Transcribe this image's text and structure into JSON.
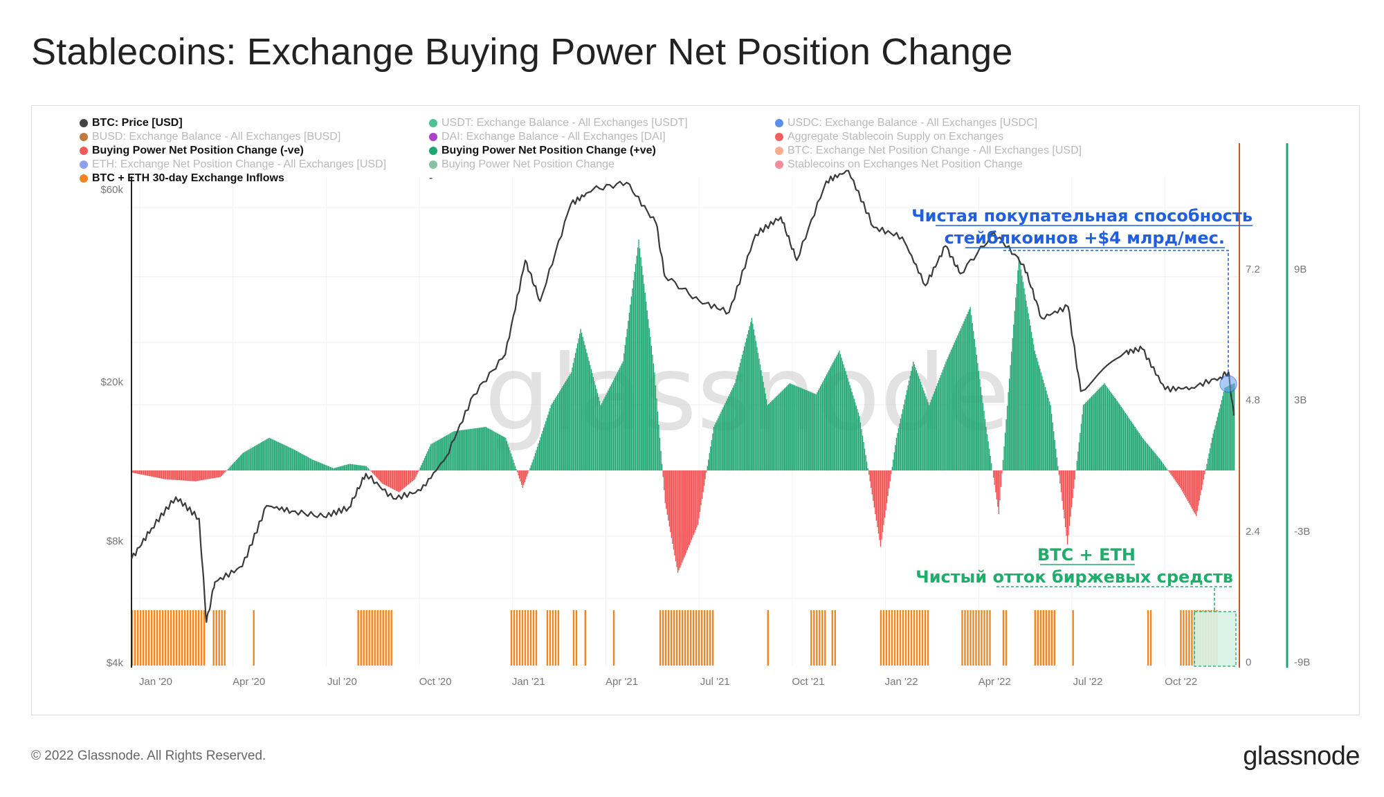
{
  "title": "Stablecoins: Exchange Buying Power Net Position Change",
  "footer": "© 2022 Glassnode. All Rights Reserved.",
  "brand": "glassnode",
  "watermark": "glassnode",
  "legend": [
    {
      "label": "BTC: Price [USD]",
      "color": "#444444",
      "state": "active"
    },
    {
      "label": "USDT: Exchange Balance - All Exchanges [USDT]",
      "color": "#2eb67d",
      "state": "faded"
    },
    {
      "label": "USDC: Exchange Balance - All Exchanges [USDC]",
      "color": "#3b7be8",
      "state": "faded"
    },
    {
      "label": "BUSD: Exchange Balance - All Exchanges [BUSD]",
      "color": "#b5651d",
      "state": "faded"
    },
    {
      "label": "DAI: Exchange Balance - All Exchanges [DAI]",
      "color": "#a020c0",
      "state": "faded"
    },
    {
      "label": "Aggregate Stablecoin Supply on Exchanges",
      "color": "#ee4444",
      "state": "faded"
    },
    {
      "label": "Buying Power Net Position Change (-ve)",
      "color": "#f05a5a",
      "state": "active"
    },
    {
      "label": "Buying Power Net Position Change (+ve)",
      "color": "#1ea672",
      "state": "active"
    },
    {
      "label": "BTC: Exchange Net Position Change - All Exchanges [USD]",
      "color": "#f5a07a",
      "state": "faded"
    },
    {
      "label": "ETH: Exchange Net Position Change - All Exchanges [USD]",
      "color": "#7b8ff0",
      "state": "faded"
    },
    {
      "label": "Buying Power Net Position Change",
      "color": "#70b890",
      "state": "faded"
    },
    {
      "label": "Stablecoins on Exchanges Net Position Change",
      "color": "#f07a8a",
      "state": "faded"
    },
    {
      "label": "BTC + ETH 30-day Exchange Inflows",
      "color": "#f5841f",
      "state": "active"
    },
    {
      "label": "-",
      "color": "",
      "state": "plain"
    }
  ],
  "annotations": {
    "blue_line1": "Чистая покупательная способность",
    "blue_line2": "стейблкоинов +$4 млрд/мес.",
    "green_line1": "BTC + ETH",
    "green_line2": "Чистый отток биржевых средств"
  },
  "colors": {
    "price": "#3a3a3a",
    "positive": "#1ea672",
    "negative": "#f04e4e",
    "inflows": "#f5841f",
    "right_axis": "#1ea672",
    "mid_axis": "#c0562a",
    "annotation_blue": "#1f5fe0",
    "annotation_green": "#1eae6b"
  },
  "chart_data": {
    "type": "bar",
    "x_ticks": [
      "Jan '20",
      "Apr '20",
      "Jul '20",
      "Oct '20",
      "Jan '21",
      "Apr '21",
      "Jul '21",
      "Oct '21",
      "Jan '22",
      "Apr '22",
      "Jul '22",
      "Oct '22"
    ],
    "left_axis": {
      "label": "BTC: Price [USD]",
      "scale": "log",
      "ticks": [
        "$4k",
        "$8k",
        "$20k",
        "$60k"
      ],
      "range": [
        4000,
        65000
      ]
    },
    "mid_axis": {
      "ticks": [
        "0",
        "2.4",
        "4.8",
        "7.2"
      ]
    },
    "right_axis": {
      "ticks": [
        "-9B",
        "-3B",
        "3B",
        "9B"
      ],
      "range": [
        -9,
        9
      ]
    },
    "legend_position": "top",
    "grid": true,
    "btc_price": {
      "name": "BTC: Price [USD]",
      "points": [
        [
          "2020-01-01",
          7200
        ],
        [
          "2020-01-20",
          8600
        ],
        [
          "2020-02-12",
          10300
        ],
        [
          "2020-03-05",
          9100
        ],
        [
          "2020-03-12",
          5000
        ],
        [
          "2020-03-20",
          6300
        ],
        [
          "2020-04-15",
          6900
        ],
        [
          "2020-05-08",
          9800
        ],
        [
          "2020-06-01",
          9500
        ],
        [
          "2020-07-01",
          9200
        ],
        [
          "2020-07-25",
          9700
        ],
        [
          "2020-08-10",
          11800
        ],
        [
          "2020-09-05",
          10200
        ],
        [
          "2020-10-01",
          10700
        ],
        [
          "2020-10-25",
          13000
        ],
        [
          "2020-11-20",
          18600
        ],
        [
          "2020-12-20",
          23500
        ],
        [
          "2021-01-08",
          40500
        ],
        [
          "2021-01-22",
          32000
        ],
        [
          "2021-02-20",
          56000
        ],
        [
          "2021-03-13",
          61000
        ],
        [
          "2021-04-14",
          63500
        ],
        [
          "2021-05-12",
          50000
        ],
        [
          "2021-05-20",
          37000
        ],
        [
          "2021-06-22",
          32000
        ],
        [
          "2021-07-20",
          30000
        ],
        [
          "2021-08-14",
          47000
        ],
        [
          "2021-09-07",
          52000
        ],
        [
          "2021-09-22",
          40500
        ],
        [
          "2021-10-20",
          64000
        ],
        [
          "2021-11-10",
          68000
        ],
        [
          "2021-12-04",
          49000
        ],
        [
          "2021-12-31",
          46300
        ],
        [
          "2022-01-22",
          35000
        ],
        [
          "2022-02-10",
          44000
        ],
        [
          "2022-02-24",
          37500
        ],
        [
          "2022-03-28",
          47500
        ],
        [
          "2022-04-25",
          39500
        ],
        [
          "2022-05-12",
          29000
        ],
        [
          "2022-06-06",
          31000
        ],
        [
          "2022-06-18",
          19000
        ],
        [
          "2022-07-30",
          23800
        ],
        [
          "2022-08-15",
          24300
        ],
        [
          "2022-09-06",
          19200
        ],
        [
          "2022-10-01",
          19400
        ],
        [
          "2022-10-28",
          20600
        ],
        [
          "2022-11-05",
          21200
        ],
        [
          "2022-11-10",
          16500
        ]
      ]
    },
    "buying_power_net_position_change": {
      "name": "Buying Power Net Position Change",
      "unit": "USD billions",
      "points": [
        [
          "2020-01-01",
          -0.1
        ],
        [
          "2020-02-01",
          -0.4
        ],
        [
          "2020-03-01",
          -0.5
        ],
        [
          "2020-03-25",
          -0.3
        ],
        [
          "2020-04-15",
          0.8
        ],
        [
          "2020-05-10",
          1.5
        ],
        [
          "2020-06-01",
          1.0
        ],
        [
          "2020-06-20",
          0.5
        ],
        [
          "2020-07-10",
          0.1
        ],
        [
          "2020-07-25",
          0.3
        ],
        [
          "2020-08-10",
          0.2
        ],
        [
          "2020-08-25",
          -0.6
        ],
        [
          "2020-09-10",
          -1.0
        ],
        [
          "2020-09-25",
          -0.4
        ],
        [
          "2020-10-10",
          1.2
        ],
        [
          "2020-11-01",
          1.8
        ],
        [
          "2020-12-01",
          2.0
        ],
        [
          "2020-12-20",
          1.5
        ],
        [
          "2021-01-05",
          -0.8
        ],
        [
          "2021-01-15",
          0.5
        ],
        [
          "2021-02-01",
          3.0
        ],
        [
          "2021-02-20",
          4.5
        ],
        [
          "2021-03-01",
          6.5
        ],
        [
          "2021-03-20",
          3.0
        ],
        [
          "2021-04-10",
          5.0
        ],
        [
          "2021-04-25",
          10.6
        ],
        [
          "2021-05-10",
          4.5
        ],
        [
          "2021-05-20",
          -1.5
        ],
        [
          "2021-06-01",
          -4.7
        ],
        [
          "2021-06-20",
          -2.5
        ],
        [
          "2021-07-05",
          2.0
        ],
        [
          "2021-07-25",
          4.0
        ],
        [
          "2021-08-10",
          7.0
        ],
        [
          "2021-08-25",
          3.0
        ],
        [
          "2021-09-15",
          4.0
        ],
        [
          "2021-10-10",
          3.5
        ],
        [
          "2021-11-01",
          5.5
        ],
        [
          "2021-11-20",
          2.5
        ],
        [
          "2021-12-10",
          -3.5
        ],
        [
          "2021-12-25",
          1.5
        ],
        [
          "2022-01-10",
          5.0
        ],
        [
          "2022-01-25",
          3.0
        ],
        [
          "2022-02-10",
          5.0
        ],
        [
          "2022-03-05",
          7.5
        ],
        [
          "2022-03-20",
          2.0
        ],
        [
          "2022-04-01",
          -2.0
        ],
        [
          "2022-04-20",
          9.8
        ],
        [
          "2022-05-05",
          5.5
        ],
        [
          "2022-05-20",
          3.0
        ],
        [
          "2022-06-05",
          -3.4
        ],
        [
          "2022-06-20",
          3.0
        ],
        [
          "2022-07-10",
          4.0
        ],
        [
          "2022-07-25",
          3.0
        ],
        [
          "2022-08-15",
          1.5
        ],
        [
          "2022-09-01",
          0.5
        ],
        [
          "2022-09-20",
          -0.8
        ],
        [
          "2022-10-05",
          -2.1
        ],
        [
          "2022-10-20",
          1.5
        ],
        [
          "2022-11-01",
          3.8
        ],
        [
          "2022-11-10",
          4.0
        ]
      ]
    },
    "btc_eth_30d_exchange_inflows": {
      "name": "BTC + ETH 30-day Exchange Inflows",
      "active_periods": [
        [
          "2020-01-01",
          "2020-03-10"
        ],
        [
          "2020-03-18",
          "2020-03-30"
        ],
        [
          "2020-04-25",
          "2020-04-27"
        ],
        [
          "2020-08-02",
          "2020-09-05"
        ],
        [
          "2020-12-25",
          "2021-01-20"
        ],
        [
          "2021-01-28",
          "2021-02-08"
        ],
        [
          "2021-02-22",
          "2021-02-25"
        ],
        [
          "2021-03-05",
          "2021-03-07"
        ],
        [
          "2021-04-01",
          "2021-04-02"
        ],
        [
          "2021-05-15",
          "2021-07-05"
        ],
        [
          "2021-08-25",
          "2021-08-27"
        ],
        [
          "2021-10-05",
          "2021-10-20"
        ],
        [
          "2021-10-25",
          "2021-10-28"
        ],
        [
          "2021-12-10",
          "2022-01-25"
        ],
        [
          "2022-02-25",
          "2022-03-25"
        ],
        [
          "2022-04-05",
          "2022-04-10"
        ],
        [
          "2022-05-05",
          "2022-05-25"
        ],
        [
          "2022-06-10",
          "2022-06-12"
        ],
        [
          "2022-08-20",
          "2022-08-23"
        ],
        [
          "2022-09-20",
          "2022-10-25"
        ]
      ]
    }
  }
}
